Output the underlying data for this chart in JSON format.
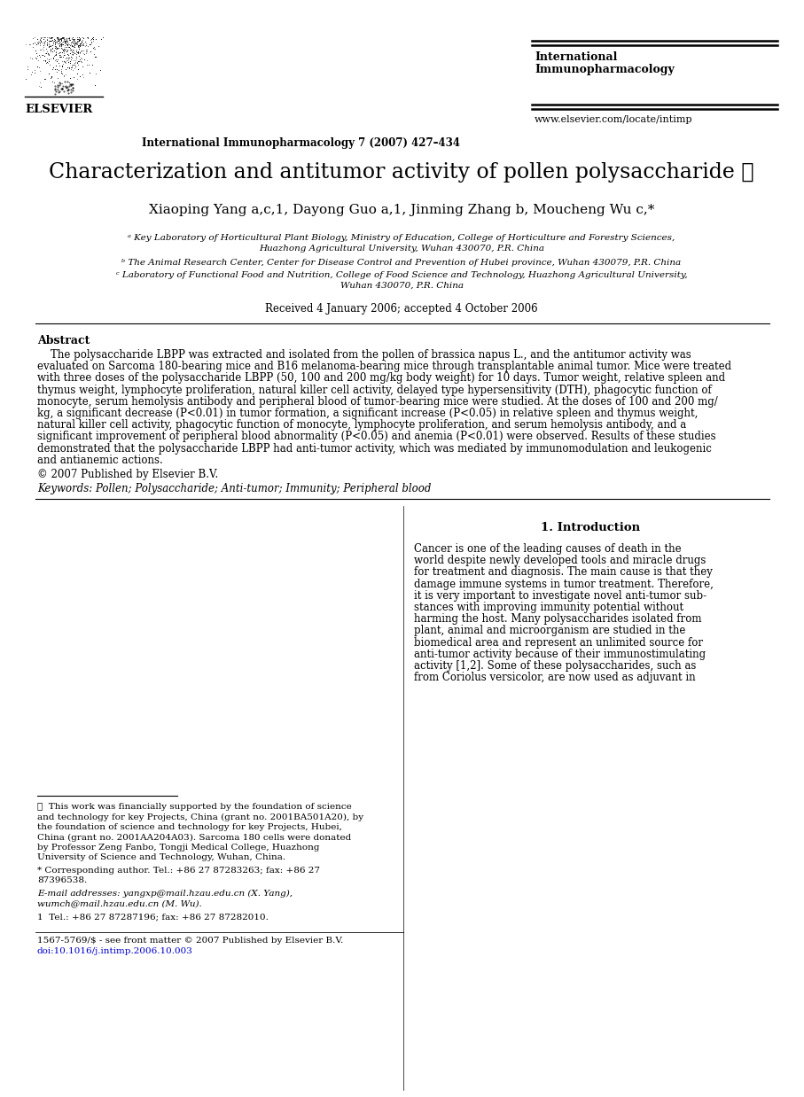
{
  "bg_color": "#ffffff",
  "journal_name_line1": "International",
  "journal_name_line2": "Immunopharmacology",
  "journal_info": "International Immunopharmacology 7 (2007) 427–434",
  "journal_url": "www.elsevier.com/locate/intimp",
  "title": "Characterization and antitumor activity of pollen polysaccharide ☆",
  "authors_line": "Xiaoping Yang a,c,1, Dayong Guo a,1, Jinming Zhang b, Moucheng Wu c,*",
  "affil_a1": "ᵃ Key Laboratory of Horticultural Plant Biology, Ministry of Education, College of Horticulture and Forestry Sciences,",
  "affil_a2": "Huazhong Agricultural University, Wuhan 430070, P.R. China",
  "affil_b": "ᵇ The Animal Research Center, Center for Disease Control and Prevention of Hubei province, Wuhan 430079, P.R. China",
  "affil_c1": "ᶜ Laboratory of Functional Food and Nutrition, College of Food Science and Technology, Huazhong Agricultural University,",
  "affil_c2": "Wuhan 430070, P.R. China",
  "received": "Received 4 January 2006; accepted 4 October 2006",
  "abstract_title": "Abstract",
  "abstract_lines": [
    "    The polysaccharide LBPP was extracted and isolated from the pollen of brassica napus L., and the antitumor activity was",
    "evaluated on Sarcoma 180-bearing mice and B16 melanoma-bearing mice through transplantable animal tumor. Mice were treated",
    "with three doses of the polysaccharide LBPP (50, 100 and 200 mg/kg body weight) for 10 days. Tumor weight, relative spleen and",
    "thymus weight, lymphocyte proliferation, natural killer cell activity, delayed type hypersensitivity (DTH), phagocytic function of",
    "monocyte, serum hemolysis antibody and peripheral blood of tumor-bearing mice were studied. At the doses of 100 and 200 mg/",
    "kg, a significant decrease (P<0.01) in tumor formation, a significant increase (P<0.05) in relative spleen and thymus weight,",
    "natural killer cell activity, phagocytic function of monocyte, lymphocyte proliferation, and serum hemolysis antibody, and a",
    "significant improvement of peripheral blood abnormality (P<0.05) and anemia (P<0.01) were observed. Results of these studies",
    "demonstrated that the polysaccharide LBPP had anti-tumor activity, which was mediated by immunomodulation and leukogenic",
    "and antianemic actions."
  ],
  "copyright": "© 2007 Published by Elsevier B.V.",
  "keywords": "Keywords: Pollen; Polysaccharide; Anti-tumor; Immunity; Peripheral blood",
  "section1_title": "1. Introduction",
  "intro_lines": [
    "Cancer is one of the leading causes of death in the",
    "world despite newly developed tools and miracle drugs",
    "for treatment and diagnosis. The main cause is that they",
    "damage immune systems in tumor treatment. Therefore,",
    "it is very important to investigate novel anti-tumor sub-",
    "stances with improving immunity potential without",
    "harming the host. Many polysaccharides isolated from",
    "plant, animal and microorganism are studied in the",
    "biomedical area and represent an unlimited source for",
    "anti-tumor activity because of their immunostimulating",
    "activity [1,2]. Some of these polysaccharides, such as",
    "from Coriolus versicolor, are now used as adjuvant in"
  ],
  "fn_star_lines": [
    "★  This work was financially supported by the foundation of science",
    "and technology for key Projects, China (grant no. 2001BA501A20), by",
    "the foundation of science and technology for key Projects, Hubei,",
    "China (grant no. 2001AA204A03). Sarcoma 180 cells were donated",
    "by Professor Zeng Fanbo, Tongji Medical College, Huazhong",
    "University of Science and Technology, Wuhan, China."
  ],
  "fn_corr_lines": [
    "* Corresponding author. Tel.: +86 27 87283263; fax: +86 27",
    "87396538."
  ],
  "fn_email_lines": [
    "E-mail addresses: yangxp@mail.hzau.edu.cn (X. Yang),",
    "wumch@mail.hzau.edu.cn (M. Wu)."
  ],
  "fn_tel": "1  Tel.: +86 27 87287196; fax: +86 27 87282010.",
  "issn_lines": [
    "1567-5769/$ - see front matter © 2007 Published by Elsevier B.V.",
    "doi:10.1016/j.intimp.2006.10.003"
  ]
}
